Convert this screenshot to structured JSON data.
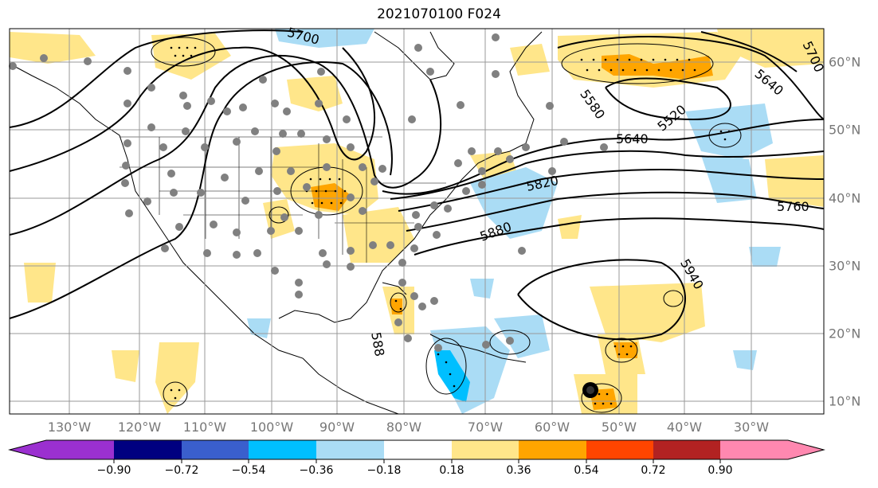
{
  "title": "2021070100 F024",
  "lon_labels": [
    "130°W",
    "120°W",
    "110°W",
    "100°W",
    "90°W",
    "80°W",
    "70°W",
    "60°W",
    "50°W",
    "40°W",
    "30°W"
  ],
  "lat_labels": [
    "60°N",
    "50°N",
    "40°N",
    "30°N",
    "20°N",
    "10°N"
  ],
  "contour_labels": [
    "5700",
    "5520",
    "5580",
    "5640",
    "5640",
    "5700",
    "5760",
    "5820",
    "5880",
    "5940",
    "588"
  ],
  "colorbar": {
    "ticks": [
      "−0.90",
      "−0.72",
      "−0.54",
      "−0.36",
      "−0.18",
      "0.18",
      "0.36",
      "0.54",
      "0.72",
      "0.90"
    ],
    "colors": [
      "#9b30d0",
      "#000080",
      "#3a5fcd",
      "#00bfff",
      "#aadcf5",
      "#ffffff",
      "#ffe68a",
      "#ffa500",
      "#ff4500",
      "#b22222",
      "#ff88b0"
    ]
  }
}
